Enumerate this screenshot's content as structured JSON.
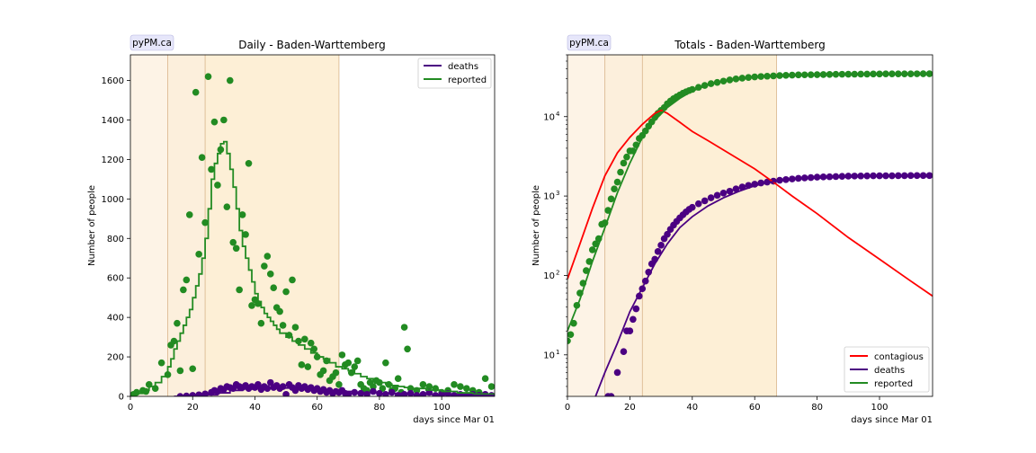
{
  "chart_data": [
    {
      "type": "line",
      "badge": "pyPM.ca",
      "title": "Daily - Baden-Warttemberg",
      "xlabel": "days since Mar 01",
      "ylabel": "Number of people",
      "xlim": [
        0,
        117
      ],
      "ylim": [
        0,
        1730
      ],
      "yscale": "linear",
      "xticks": [
        0,
        20,
        40,
        60,
        80,
        100
      ],
      "yticks": [
        0,
        200,
        400,
        600,
        800,
        1000,
        1200,
        1400,
        1600
      ],
      "legend": {
        "placement": "top-right",
        "entries": [
          {
            "label": "deaths",
            "color": "#4b0082"
          },
          {
            "label": "reported",
            "color": "#228b22"
          }
        ]
      },
      "phases": [
        {
          "from": 0,
          "to": 12,
          "color": "#fdf3e6"
        },
        {
          "from": 12,
          "to": 24,
          "color": "#fcefdc"
        },
        {
          "from": 24,
          "to": 67,
          "color": "#fdefd6"
        }
      ],
      "phase_boundaries": [
        12,
        24,
        67
      ],
      "series": [
        {
          "name": "reported",
          "kind": "step",
          "color": "#228b22",
          "x": [
            0,
            2,
            4,
            6,
            8,
            10,
            12,
            13,
            14,
            15,
            16,
            17,
            18,
            19,
            20,
            21,
            22,
            23,
            24,
            25,
            26,
            27,
            28,
            29,
            30,
            31,
            32,
            33,
            34,
            35,
            36,
            37,
            38,
            39,
            40,
            41,
            42,
            43,
            44,
            45,
            46,
            47,
            48,
            50,
            52,
            54,
            56,
            58,
            60,
            62,
            64,
            66,
            68,
            70,
            72,
            74,
            76,
            78,
            80,
            82,
            84,
            86,
            88,
            90,
            95,
            100,
            105,
            110,
            117
          ],
          "y": [
            5,
            15,
            30,
            50,
            70,
            100,
            150,
            190,
            240,
            280,
            320,
            360,
            400,
            440,
            500,
            560,
            620,
            700,
            800,
            950,
            1100,
            1180,
            1230,
            1280,
            1290,
            1230,
            1150,
            1060,
            950,
            840,
            760,
            700,
            640,
            580,
            520,
            480,
            450,
            420,
            400,
            380,
            360,
            340,
            320,
            300,
            280,
            260,
            240,
            220,
            200,
            190,
            170,
            150,
            140,
            130,
            115,
            100,
            90,
            80,
            70,
            62,
            55,
            50,
            45,
            40,
            32,
            25,
            18,
            12,
            8
          ]
        },
        {
          "name": "reported-points",
          "kind": "scatter",
          "color": "#228b22",
          "x": [
            1,
            2,
            4,
            5,
            6,
            8,
            10,
            12,
            13,
            14,
            15,
            16,
            17,
            18,
            19,
            20,
            21,
            22,
            23,
            24,
            25,
            26,
            27,
            28,
            29,
            30,
            31,
            32,
            33,
            34,
            35,
            36,
            37,
            38,
            39,
            40,
            41,
            42,
            43,
            44,
            45,
            46,
            47,
            48,
            49,
            50,
            51,
            52,
            53,
            54,
            55,
            56,
            57,
            58,
            59,
            60,
            61,
            62,
            63,
            64,
            65,
            66,
            67,
            68,
            69,
            70,
            71,
            72,
            73,
            74,
            75,
            76,
            77,
            78,
            79,
            80,
            81,
            82,
            83,
            84,
            85,
            86,
            87,
            88,
            89,
            90,
            92,
            94,
            96,
            98,
            100,
            102,
            104,
            106,
            108,
            110,
            112,
            114,
            116
          ],
          "y": [
            10,
            20,
            30,
            25,
            60,
            40,
            170,
            110,
            260,
            280,
            370,
            130,
            540,
            590,
            920,
            140,
            1540,
            720,
            1210,
            880,
            1620,
            1150,
            1390,
            1070,
            1250,
            1400,
            960,
            1600,
            780,
            750,
            540,
            920,
            820,
            1180,
            460,
            490,
            470,
            370,
            660,
            710,
            620,
            550,
            450,
            430,
            360,
            530,
            310,
            590,
            350,
            280,
            160,
            290,
            150,
            270,
            240,
            200,
            110,
            130,
            180,
            80,
            100,
            120,
            60,
            210,
            160,
            170,
            120,
            150,
            180,
            60,
            40,
            30,
            70,
            50,
            80,
            70,
            40,
            170,
            60,
            30,
            40,
            90,
            20,
            350,
            240,
            40,
            30,
            60,
            50,
            40,
            20,
            30,
            60,
            50,
            40,
            30,
            20,
            90,
            50
          ]
        },
        {
          "name": "deaths",
          "kind": "scatter",
          "color": "#4b0082",
          "x": [
            16,
            18,
            20,
            22,
            24,
            26,
            27,
            28,
            29,
            30,
            31,
            32,
            33,
            34,
            35,
            36,
            37,
            38,
            39,
            40,
            41,
            42,
            43,
            44,
            45,
            46,
            47,
            48,
            49,
            50,
            51,
            52,
            53,
            54,
            55,
            56,
            57,
            58,
            59,
            60,
            61,
            62,
            63,
            64,
            65,
            66,
            67,
            68,
            69,
            70,
            72,
            74,
            76,
            78,
            80,
            82,
            84,
            86,
            88,
            90,
            92,
            94,
            96,
            98,
            100,
            102,
            104,
            106,
            108,
            110,
            112,
            114,
            116
          ],
          "y": [
            0,
            2,
            5,
            8,
            12,
            20,
            30,
            25,
            40,
            35,
            50,
            45,
            40,
            60,
            50,
            45,
            55,
            40,
            50,
            45,
            60,
            35,
            50,
            40,
            70,
            45,
            55,
            40,
            50,
            10,
            60,
            45,
            30,
            55,
            40,
            50,
            35,
            45,
            30,
            40,
            25,
            35,
            20,
            30,
            15,
            25,
            20,
            30,
            15,
            10,
            20,
            15,
            10,
            25,
            15,
            10,
            20,
            5,
            10,
            15,
            5,
            10,
            20,
            5,
            10,
            15,
            5,
            10,
            5,
            10,
            5,
            10,
            5
          ]
        },
        {
          "name": "deaths-line",
          "kind": "step",
          "color": "#4b0082",
          "x": [
            14,
            20,
            24,
            28,
            32,
            36,
            40,
            44,
            48,
            52,
            56,
            60,
            66,
            72,
            80,
            90,
            100,
            110,
            117
          ],
          "y": [
            0,
            3,
            8,
            18,
            30,
            38,
            42,
            44,
            42,
            38,
            34,
            30,
            25,
            20,
            15,
            10,
            7,
            5,
            4
          ]
        }
      ]
    },
    {
      "type": "line",
      "badge": "pyPM.ca",
      "title": "Totals - Baden-Warttemberg",
      "xlabel": "days since Mar 01",
      "ylabel": "Number of people",
      "xlim": [
        0,
        117
      ],
      "ylim": [
        3,
        60000
      ],
      "yscale": "log",
      "xticks": [
        0,
        20,
        40,
        60,
        80,
        100
      ],
      "yticks": [
        {
          "value": 10,
          "label": "10",
          "exp": "1"
        },
        {
          "value": 100,
          "label": "10",
          "exp": "2"
        },
        {
          "value": 1000,
          "label": "10",
          "exp": "3"
        },
        {
          "value": 10000,
          "label": "10",
          "exp": "4"
        }
      ],
      "legend": {
        "placement": "bottom-right",
        "entries": [
          {
            "label": "contagious",
            "color": "#ff0000"
          },
          {
            "label": "deaths",
            "color": "#4b0082"
          },
          {
            "label": "reported",
            "color": "#228b22"
          }
        ]
      },
      "phases": [
        {
          "from": 0,
          "to": 12,
          "color": "#fdf3e6"
        },
        {
          "from": 12,
          "to": 24,
          "color": "#fcefdc"
        },
        {
          "from": 24,
          "to": 67,
          "color": "#fdefd6"
        }
      ],
      "phase_boundaries": [
        12,
        24,
        67
      ],
      "series": [
        {
          "name": "contagious",
          "kind": "line",
          "color": "#ff0000",
          "x": [
            0,
            4,
            8,
            12,
            16,
            20,
            24,
            28,
            30,
            32,
            36,
            40,
            45,
            50,
            60,
            67,
            72,
            80,
            90,
            100,
            110,
            117
          ],
          "y": [
            90,
            250,
            700,
            1800,
            3500,
            5500,
            8000,
            11000,
            12000,
            11000,
            8500,
            6500,
            5000,
            3800,
            2200,
            1400,
            1000,
            600,
            300,
            160,
            85,
            55
          ]
        },
        {
          "name": "deaths",
          "kind": "line",
          "color": "#4b0082",
          "x": [
            9,
            12,
            16,
            20,
            24,
            28,
            32,
            36,
            40,
            45,
            50,
            55,
            60,
            67,
            75,
            85,
            100,
            117
          ],
          "y": [
            3,
            6,
            14,
            35,
            70,
            140,
            250,
            400,
            550,
            750,
            950,
            1150,
            1350,
            1550,
            1650,
            1720,
            1780,
            1800
          ]
        },
        {
          "name": "reported",
          "kind": "line",
          "color": "#228b22",
          "x": [
            0,
            4,
            8,
            12,
            16,
            20,
            24,
            28,
            32,
            36,
            40,
            45,
            50,
            55,
            60,
            67,
            80,
            100,
            117
          ],
          "y": [
            20,
            50,
            150,
            400,
            1100,
            2600,
            5500,
            9000,
            13000,
            17000,
            21000,
            25000,
            28000,
            30000,
            32000,
            33000,
            33500,
            34000,
            34200
          ]
        },
        {
          "name": "deaths-points",
          "kind": "scatter",
          "color": "#4b0082",
          "x": [
            13,
            14,
            16,
            18,
            19,
            20,
            21,
            22,
            23,
            24,
            25,
            26,
            27,
            28,
            29,
            30,
            31,
            32,
            33,
            34,
            35,
            36,
            37,
            38,
            39,
            40,
            42,
            44,
            46,
            48,
            50,
            52,
            54,
            56,
            58,
            60,
            62,
            64,
            66,
            68,
            70,
            72,
            74,
            76,
            78,
            80,
            82,
            84,
            86,
            88,
            90,
            92,
            94,
            96,
            98,
            100,
            102,
            104,
            106,
            108,
            110,
            112,
            114,
            116
          ],
          "y": [
            3,
            3,
            6,
            11,
            20,
            20,
            28,
            38,
            55,
            68,
            85,
            110,
            140,
            160,
            200,
            240,
            290,
            330,
            380,
            430,
            480,
            530,
            580,
            630,
            680,
            720,
            800,
            870,
            950,
            1020,
            1090,
            1150,
            1230,
            1300,
            1360,
            1410,
            1460,
            1500,
            1540,
            1580,
            1610,
            1640,
            1670,
            1690,
            1710,
            1730,
            1740,
            1750,
            1760,
            1770,
            1780,
            1785,
            1790,
            1795,
            1800,
            1800,
            1800,
            1800,
            1805,
            1805,
            1810,
            1810,
            1810,
            1810
          ]
        },
        {
          "name": "reported-points",
          "kind": "scatter",
          "color": "#228b22",
          "x": [
            0,
            1,
            2,
            3,
            4,
            5,
            6,
            7,
            8,
            9,
            10,
            11,
            12,
            13,
            14,
            15,
            16,
            17,
            18,
            19,
            20,
            21,
            22,
            23,
            24,
            25,
            26,
            27,
            28,
            29,
            30,
            31,
            32,
            33,
            34,
            35,
            36,
            37,
            38,
            39,
            40,
            42,
            44,
            46,
            48,
            50,
            52,
            54,
            56,
            58,
            60,
            62,
            64,
            66,
            68,
            70,
            72,
            74,
            76,
            78,
            80,
            82,
            84,
            86,
            88,
            90,
            92,
            94,
            96,
            98,
            100,
            102,
            104,
            106,
            108,
            110,
            112,
            114,
            116
          ],
          "y": [
            15,
            18,
            25,
            42,
            60,
            80,
            115,
            150,
            210,
            250,
            290,
            440,
            460,
            660,
            920,
            1230,
            1500,
            2000,
            2600,
            3100,
            3700,
            3700,
            4400,
            5300,
            5800,
            6600,
            7600,
            8600,
            9800,
            11000,
            12000,
            13000,
            14500,
            15700,
            16800,
            17800,
            18700,
            19700,
            20500,
            21300,
            22000,
            23400,
            24700,
            26000,
            27000,
            28000,
            29000,
            29800,
            30500,
            31100,
            31600,
            32000,
            32300,
            32600,
            32900,
            33100,
            33300,
            33500,
            33600,
            33700,
            33800,
            33900,
            34000,
            34100,
            34150,
            34200,
            34250,
            34300,
            34350,
            34400,
            34450,
            34500,
            34520,
            34540,
            34560,
            34580,
            34600,
            34620,
            34640
          ]
        }
      ]
    }
  ]
}
